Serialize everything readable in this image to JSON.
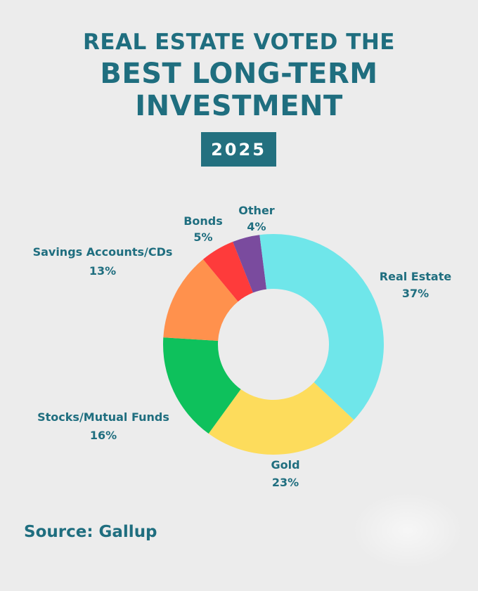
{
  "header": {
    "line1": "REAL ESTATE VOTED THE",
    "line2": "BEST LONG-TERM",
    "line3": "INVESTMENT",
    "year": "2025"
  },
  "footer": {
    "source": "Source: Gallup"
  },
  "chart_data": {
    "type": "pie",
    "style": "donut",
    "categories": [
      "Real Estate",
      "Gold",
      "Stocks/Mutual Funds",
      "Savings Accounts/CDs",
      "Bonds",
      "Other"
    ],
    "values": [
      37,
      23,
      16,
      13,
      5,
      4
    ],
    "value_labels": [
      "37%",
      "23%",
      "16%",
      "13%",
      "5%",
      "4%"
    ],
    "colors": [
      "#6fe6ea",
      "#fddc5c",
      "#0ec15c",
      "#ff914d",
      "#fe3b3b",
      "#7a4b9e",
      "#6fe6ea"
    ],
    "extra_slice_note": "remaining 2% unlabeled wedge shown in light cyan"
  }
}
